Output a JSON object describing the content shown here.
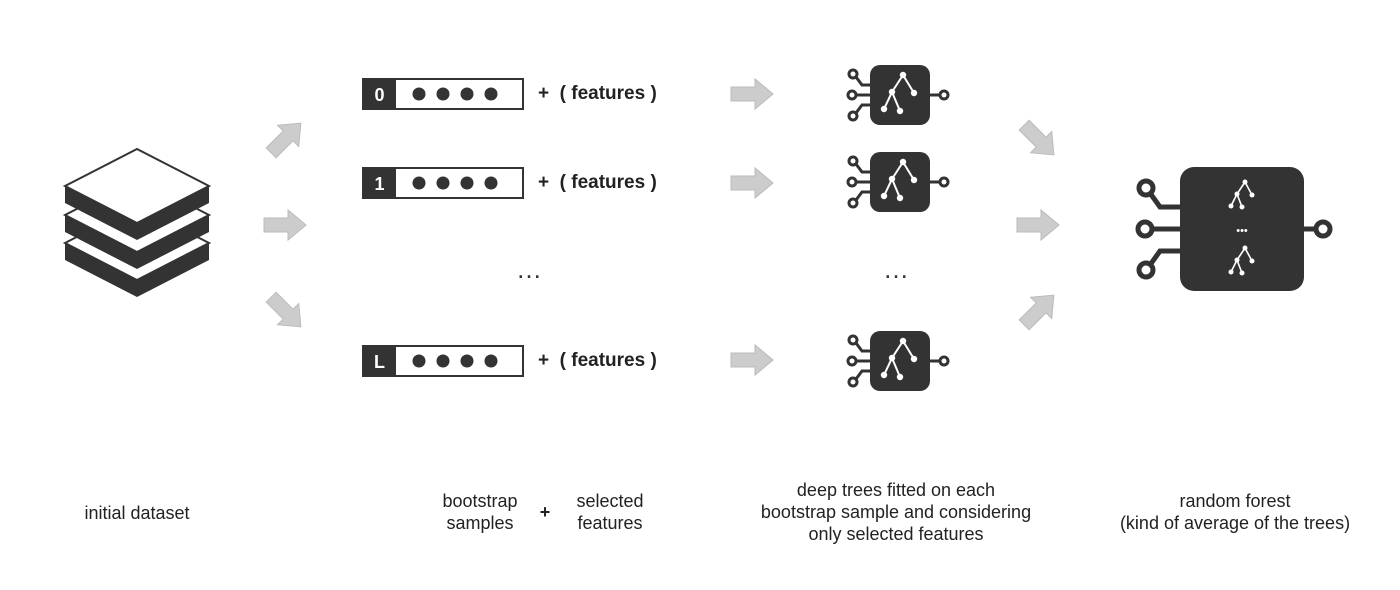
{
  "samples": [
    {
      "id": "0",
      "features_label": "+  ( features )"
    },
    {
      "id": "1",
      "features_label": "+  ( features )"
    },
    {
      "id": "L",
      "features_label": "+  ( features )"
    }
  ],
  "ellipsis": "…",
  "forest_ellipsis": "•••",
  "captions": {
    "initial": "initial dataset",
    "bootstrap_line1": "bootstrap",
    "bootstrap_line2": "samples",
    "plus": "+",
    "selected_line1": "selected",
    "selected_line2": "features",
    "trees_line1": "deep trees fitted on each",
    "trees_line2": "bootstrap sample and considering",
    "trees_line3": "only selected features",
    "forest_line1": "random forest",
    "forest_line2": "(kind of average of the trees)"
  },
  "icons": [
    "dataset-stack-icon",
    "arrow-icon",
    "sample-bar-icon",
    "tree-chip-icon",
    "forest-chip-icon"
  ],
  "colors": {
    "dark": "#333333",
    "arrow": "#cccccc",
    "text": "#222222"
  }
}
